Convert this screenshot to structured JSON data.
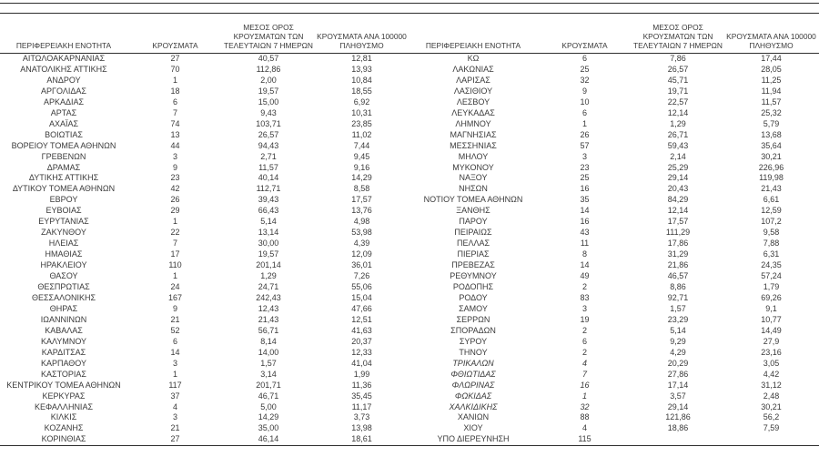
{
  "colors": {
    "text": "#3a3a3a",
    "rule_lines": "#2e2e2e",
    "background": "#ffffff"
  },
  "table": {
    "headers": {
      "region": "ΠΕΡΙΦΕΡΕΙΑΚΗ ΕΝΟΤΗΤΑ",
      "cases": "ΚΡΟΥΣΜΑΤΑ",
      "avg7": "ΜΕΣΟΣ ΟΡΟΣ ΚΡΟΥΣΜΑΤΩΝ ΤΩΝ ΤΕΛΕΥΤΑΙΩΝ 7 ΗΜΕΡΩΝ",
      "per100k": "ΚΡΟΥΣΜΑΤΑ ΑΝΑ 100000 ΠΛΗΘΥΣΜΟ"
    },
    "left_rows": [
      [
        "ΑΙΤΩΛΟΑΚΑΡΝΑΝΙΑΣ",
        "27",
        "40,57",
        "12,81"
      ],
      [
        "ΑΝΑΤΟΛΙΚΗΣ ΑΤΤΙΚΗΣ",
        "70",
        "112,86",
        "13,93"
      ],
      [
        "ΑΝΔΡΟΥ",
        "1",
        "2,00",
        "10,84"
      ],
      [
        "ΑΡΓΟΛΙΔΑΣ",
        "18",
        "19,57",
        "18,55"
      ],
      [
        "ΑΡΚΑΔΙΑΣ",
        "6",
        "15,00",
        "6,92"
      ],
      [
        "ΑΡΤΑΣ",
        "7",
        "9,43",
        "10,31"
      ],
      [
        "ΑΧΑΪΑΣ",
        "74",
        "103,71",
        "23,85"
      ],
      [
        "ΒΟΙΩΤΙΑΣ",
        "13",
        "26,57",
        "11,02"
      ],
      [
        "ΒΟΡΕΙΟΥ ΤΟΜΕΑ ΑΘΗΝΩΝ",
        "44",
        "94,43",
        "7,44"
      ],
      [
        "ΓΡΕΒΕΝΩΝ",
        "3",
        "2,71",
        "9,45"
      ],
      [
        "ΔΡΑΜΑΣ",
        "9",
        "11,57",
        "9,16"
      ],
      [
        "ΔΥΤΙΚΗΣ ΑΤΤΙΚΗΣ",
        "23",
        "40,14",
        "14,29"
      ],
      [
        "ΔΥΤΙΚΟΥ ΤΟΜΕΑ ΑΘΗΝΩΝ",
        "42",
        "112,71",
        "8,58"
      ],
      [
        "ΕΒΡΟΥ",
        "26",
        "39,43",
        "17,57"
      ],
      [
        "ΕΥΒΟΙΑΣ",
        "29",
        "66,43",
        "13,76"
      ],
      [
        "ΕΥΡΥΤΑΝΙΑΣ",
        "1",
        "5,14",
        "4,98"
      ],
      [
        "ΖΑΚΥΝΘΟΥ",
        "22",
        "13,14",
        "53,98"
      ],
      [
        "ΗΛΕΙΑΣ",
        "7",
        "30,00",
        "4,39"
      ],
      [
        "ΗΜΑΘΙΑΣ",
        "17",
        "19,57",
        "12,09"
      ],
      [
        "ΗΡΑΚΛΕΙΟΥ",
        "110",
        "201,14",
        "36,01"
      ],
      [
        "ΘΑΣΟΥ",
        "1",
        "1,29",
        "7,26"
      ],
      [
        "ΘΕΣΠΡΩΤΙΑΣ",
        "24",
        "24,71",
        "55,06"
      ],
      [
        "ΘΕΣΣΑΛΟΝΙΚΗΣ",
        "167",
        "242,43",
        "15,04"
      ],
      [
        "ΘΗΡΑΣ",
        "9",
        "12,43",
        "47,66"
      ],
      [
        "ΙΩΑΝΝΙΝΩΝ",
        "21",
        "21,43",
        "12,51"
      ],
      [
        "ΚΑΒΑΛΑΣ",
        "52",
        "56,71",
        "41,63"
      ],
      [
        "ΚΑΛΥΜΝΟΥ",
        "6",
        "8,14",
        "20,37"
      ],
      [
        "ΚΑΡΔΙΤΣΑΣ",
        "14",
        "14,00",
        "12,33"
      ],
      [
        "ΚΑΡΠΑΘΟΥ",
        "3",
        "1,57",
        "41,04"
      ],
      [
        "ΚΑΣΤΟΡΙΑΣ",
        "1",
        "3,14",
        "1,99"
      ],
      [
        "ΚΕΝΤΡΙΚΟΥ ΤΟΜΕΑ ΑΘΗΝΩΝ",
        "117",
        "201,71",
        "11,36"
      ],
      [
        "ΚΕΡΚΥΡΑΣ",
        "37",
        "46,71",
        "35,45"
      ],
      [
        "ΚΕΦΑΛΛΗΝΙΑΣ",
        "4",
        "5,00",
        "11,17"
      ],
      [
        "ΚΙΛΚΙΣ",
        "3",
        "14,29",
        "3,73"
      ],
      [
        "ΚΟΖΑΝΗΣ",
        "21",
        "35,00",
        "13,98"
      ],
      [
        "ΚΟΡΙΝΘΙΑΣ",
        "27",
        "46,14",
        "18,61"
      ]
    ],
    "right_rows": [
      [
        "ΚΩ",
        "6",
        "7,86",
        "17,44"
      ],
      [
        "ΛΑΚΩΝΙΑΣ",
        "25",
        "26,57",
        "28,05"
      ],
      [
        "ΛΑΡΙΣΑΣ",
        "32",
        "45,71",
        "11,25"
      ],
      [
        "ΛΑΣΙΘΙΟΥ",
        "9",
        "19,71",
        "11,94"
      ],
      [
        "ΛΕΣΒΟΥ",
        "10",
        "22,57",
        "11,57"
      ],
      [
        "ΛΕΥΚΑΔΑΣ",
        "6",
        "12,14",
        "25,32"
      ],
      [
        "ΛΗΜΝΟΥ",
        "1",
        "1,29",
        "5,79"
      ],
      [
        "ΜΑΓΝΗΣΙΑΣ",
        "26",
        "26,71",
        "13,68"
      ],
      [
        "ΜΕΣΣΗΝΙΑΣ",
        "57",
        "59,43",
        "35,64"
      ],
      [
        "ΜΗΛΟΥ",
        "3",
        "2,14",
        "30,21"
      ],
      [
        "ΜΥΚΟΝΟΥ",
        "23",
        "25,29",
        "226,96"
      ],
      [
        "ΝΑΞΟΥ",
        "25",
        "29,14",
        "119,98"
      ],
      [
        "ΝΗΣΩΝ",
        "16",
        "20,43",
        "21,43"
      ],
      [
        "ΝΟΤΙΟΥ ΤΟΜΕΑ ΑΘΗΝΩΝ",
        "35",
        "84,29",
        "6,61"
      ],
      [
        "ΞΑΝΘΗΣ",
        "14",
        "12,14",
        "12,59"
      ],
      [
        "ΠΑΡΟΥ",
        "16",
        "17,57",
        "107,2"
      ],
      [
        "ΠΕΙΡΑΙΩΣ",
        "43",
        "111,29",
        "9,58"
      ],
      [
        "ΠΕΛΛΑΣ",
        "11",
        "17,86",
        "7,88"
      ],
      [
        "ΠΙΕΡΙΑΣ",
        "8",
        "31,29",
        "6,31"
      ],
      [
        "ΠΡΕΒΕΖΑΣ",
        "14",
        "21,86",
        "24,35"
      ],
      [
        "ΡΕΘΥΜΝΟΥ",
        "49",
        "46,57",
        "57,24"
      ],
      [
        "ΡΟΔΟΠΗΣ",
        "2",
        "8,86",
        "1,79"
      ],
      [
        "ΡΟΔΟΥ",
        "83",
        "92,71",
        "69,26"
      ],
      [
        "ΣΑΜΟΥ",
        "3",
        "1,57",
        "9,1"
      ],
      [
        "ΣΕΡΡΩΝ",
        "19",
        "23,29",
        "10,77"
      ],
      [
        "ΣΠΟΡΑΔΩΝ",
        "2",
        "5,14",
        "14,49"
      ],
      [
        "ΣΥΡΟΥ",
        "6",
        "9,29",
        "27,9"
      ],
      [
        "ΤΗΝΟΥ",
        "2",
        "4,29",
        "23,16"
      ],
      [
        "ΤΡΙΚΑΛΩΝ",
        "4",
        "20,29",
        "3,05"
      ],
      [
        "ΦΘΙΩΤΙΔΑΣ",
        "7",
        "27,86",
        "4,42"
      ],
      [
        "ΦΛΩΡΙΝΑΣ",
        "16",
        "17,14",
        "31,12"
      ],
      [
        "ΦΩΚΙΔΑΣ",
        "1",
        "3,57",
        "2,48"
      ],
      [
        "ΧΑΛΚΙΔΙΚΗΣ",
        "32",
        "29,14",
        "30,21"
      ],
      [
        "ΧΑΝΙΩΝ",
        "88",
        "121,86",
        "56,2"
      ],
      [
        "ΧΙΟΥ",
        "4",
        "18,86",
        "7,59"
      ],
      [
        "ΥΠΟ ΔΙΕΡΕΥΝΗΣΗ",
        "115",
        "",
        ""
      ]
    ],
    "right_italic_indices": [
      28,
      29,
      30,
      31,
      32
    ]
  }
}
